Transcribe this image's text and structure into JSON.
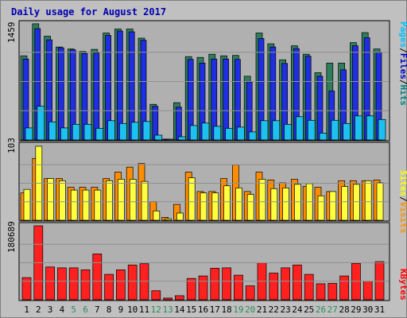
{
  "chart_data": {
    "type": "bar",
    "title": "Daily usage for August 2017",
    "days": [
      "1",
      "2",
      "3",
      "4",
      "5",
      "6",
      "7",
      "8",
      "9",
      "10",
      "11",
      "12",
      "13",
      "14",
      "15",
      "16",
      "17",
      "18",
      "19",
      "20",
      "21",
      "22",
      "23",
      "24",
      "25",
      "26",
      "27",
      "28",
      "29",
      "30",
      "31"
    ],
    "weekend_days": [
      "5",
      "6",
      "12",
      "13",
      "19",
      "20",
      "26",
      "27"
    ],
    "panels": [
      {
        "id": "pages-files-hits",
        "max_label": "1459",
        "ymax": 1459,
        "legend": [
          "Pages",
          "/",
          "Files",
          "/",
          "Hits"
        ],
        "legend_colors": [
          "#00c0ff",
          "#000000",
          "#0000c0",
          "#000000",
          "#008080"
        ],
        "series": [
          {
            "key": "hits",
            "label": "Hits",
            "color": "#2e7d5b",
            "values": [
              1050,
              1450,
              1295,
              1160,
              1135,
              1105,
              1130,
              1335,
              1385,
              1385,
              1270,
              445,
              10,
              465,
              1040,
              1030,
              1070,
              1050,
              1055,
              795,
              1335,
              1200,
              1000,
              1175,
              1070,
              840,
              960,
              960,
              1215,
              1340,
              1135
            ]
          },
          {
            "key": "files",
            "label": "Files",
            "color": "#1e2ee0",
            "values": [
              1010,
              1390,
              1250,
              1150,
              1125,
              1080,
              1085,
              1305,
              1360,
              1350,
              1245,
              420,
              10,
              410,
              1005,
              960,
              1010,
              1010,
              1005,
              725,
              1265,
              1160,
              955,
              1140,
              1045,
              795,
              610,
              875,
              1175,
              1275,
              1095
            ]
          },
          {
            "key": "pages",
            "label": "Pages",
            "color": "#1ec0f0",
            "values": [
              150,
              420,
              225,
              150,
              195,
              195,
              145,
              240,
              205,
              220,
              230,
              60,
              5,
              40,
              180,
              210,
              170,
              145,
              160,
              100,
              240,
              240,
              195,
              290,
              245,
              85,
              245,
              205,
              300,
              300,
              255
            ]
          }
        ]
      },
      {
        "id": "sites-visits",
        "max_label": "103",
        "ymax": 103,
        "legend": [
          "Sites",
          "/",
          "Visits"
        ],
        "legend_colors": [
          "#ffff00",
          "#000000",
          "#ff9000"
        ],
        "series": [
          {
            "key": "visits",
            "label": "Visits",
            "color": "#ff8c00",
            "values": [
              38,
              86,
              58,
              58,
              46,
              46,
              46,
              58,
              67,
              74,
              79,
              26,
              4,
              22,
              67,
              40,
              40,
              58,
              77,
              40,
              67,
              56,
              52,
              57,
              47,
              46,
              40,
              55,
              55,
              55,
              56
            ]
          },
          {
            "key": "sites",
            "label": "Sites",
            "color": "#ffff40",
            "values": [
              43,
              103,
              58,
              55,
              42,
              42,
              42,
              55,
              57,
              57,
              54,
              13,
              2,
              10,
              59,
              38,
              38,
              48,
              45,
              36,
              57,
              44,
              45,
              50,
              51,
              34,
              40,
              47,
              50,
              55,
              52
            ]
          }
        ]
      },
      {
        "id": "kbytes",
        "max_label": "180689",
        "ymax": 180689,
        "legend": [
          "KBytes"
        ],
        "legend_colors": [
          "#ff0000"
        ],
        "series": [
          {
            "key": "kbytes",
            "label": "KBytes",
            "color": "#ff2020",
            "values": [
              54000,
              180689,
              80000,
              78000,
              78000,
              73000,
              112000,
              62000,
              73000,
              85000,
              88000,
              22000,
              4000,
              10000,
              52000,
              58000,
              77000,
              78000,
              60000,
              34000,
              90000,
              65000,
              78000,
              85000,
              62000,
              39000,
              40000,
              58000,
              89000,
              45000,
              93000
            ]
          }
        ]
      }
    ]
  }
}
